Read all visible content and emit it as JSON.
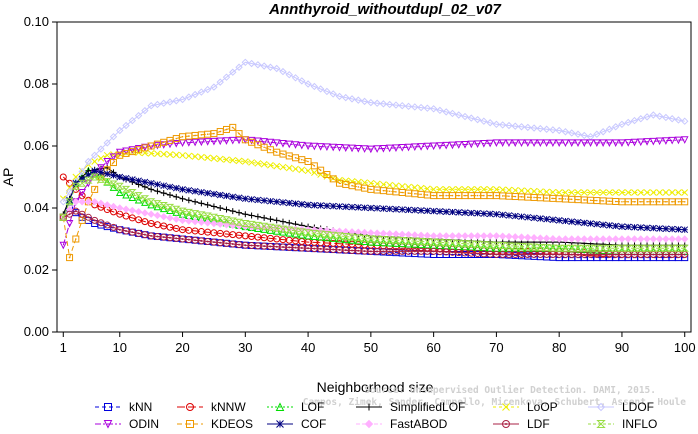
{
  "chart_data": {
    "type": "line",
    "title": "Annthyroid_withoutdupl_02_v07",
    "xlabel": "Neighborhood size",
    "ylabel": "AP",
    "xlim": [
      0,
      101
    ],
    "ylim": [
      0,
      0.1
    ],
    "x_ticks": [
      1,
      10,
      20,
      30,
      40,
      50,
      60,
      70,
      80,
      90,
      100
    ],
    "y_ticks": [
      "0.00",
      "0.02",
      "0.04",
      "0.06",
      "0.08",
      "0.10"
    ],
    "grid": false,
    "legend_position": "bottom",
    "watermark": [
      "Source: Unsupervised Outlier Detection. DAMI, 2015.",
      "Campos, Zimek, Sander, Campello, Micenkova, Schubert, Assent, Houle"
    ],
    "series": [
      {
        "name": "kNN",
        "color": "#0000dd",
        "marker": "square",
        "dash": "4,3",
        "points": [
          [
            1,
            0.037
          ],
          [
            2,
            0.04
          ],
          [
            4,
            0.037
          ],
          [
            6,
            0.035
          ],
          [
            10,
            0.033
          ],
          [
            15,
            0.031
          ],
          [
            20,
            0.03
          ],
          [
            30,
            0.028
          ],
          [
            40,
            0.027
          ],
          [
            50,
            0.026
          ],
          [
            60,
            0.025
          ],
          [
            70,
            0.025
          ],
          [
            80,
            0.024
          ],
          [
            90,
            0.024
          ],
          [
            100,
            0.024
          ]
        ]
      },
      {
        "name": "kNNW",
        "color": "#dd0000",
        "marker": "circle",
        "dash": "8,3",
        "points": [
          [
            1,
            0.05
          ],
          [
            2,
            0.048
          ],
          [
            4,
            0.044
          ],
          [
            6,
            0.041
          ],
          [
            10,
            0.038
          ],
          [
            15,
            0.035
          ],
          [
            20,
            0.033
          ],
          [
            30,
            0.031
          ],
          [
            40,
            0.029
          ],
          [
            50,
            0.028
          ],
          [
            60,
            0.027
          ],
          [
            70,
            0.026
          ],
          [
            80,
            0.026
          ],
          [
            90,
            0.025
          ],
          [
            100,
            0.025
          ]
        ]
      },
      {
        "name": "LOF",
        "color": "#00dd00",
        "marker": "triangle-up",
        "dash": "2,2",
        "points": [
          [
            1,
            0.037
          ],
          [
            3,
            0.048
          ],
          [
            5,
            0.052
          ],
          [
            7,
            0.05
          ],
          [
            10,
            0.045
          ],
          [
            15,
            0.041
          ],
          [
            20,
            0.038
          ],
          [
            30,
            0.034
          ],
          [
            40,
            0.031
          ],
          [
            50,
            0.029
          ],
          [
            60,
            0.028
          ],
          [
            70,
            0.027
          ],
          [
            80,
            0.027
          ],
          [
            90,
            0.026
          ],
          [
            100,
            0.026
          ]
        ]
      },
      {
        "name": "SimplifiedLOF",
        "color": "#000000",
        "marker": "plus",
        "dash": "",
        "points": [
          [
            1,
            0.038
          ],
          [
            3,
            0.048
          ],
          [
            5,
            0.052
          ],
          [
            8,
            0.053
          ],
          [
            10,
            0.05
          ],
          [
            15,
            0.046
          ],
          [
            20,
            0.043
          ],
          [
            30,
            0.038
          ],
          [
            40,
            0.034
          ],
          [
            50,
            0.031
          ],
          [
            60,
            0.03
          ],
          [
            70,
            0.029
          ],
          [
            80,
            0.029
          ],
          [
            90,
            0.028
          ],
          [
            100,
            0.028
          ]
        ]
      },
      {
        "name": "LoOP",
        "color": "#eeee00",
        "marker": "x",
        "dash": "3,3",
        "points": [
          [
            1,
            0.043
          ],
          [
            3,
            0.05
          ],
          [
            5,
            0.054
          ],
          [
            8,
            0.057
          ],
          [
            12,
            0.058
          ],
          [
            20,
            0.057
          ],
          [
            30,
            0.055
          ],
          [
            40,
            0.052
          ],
          [
            45,
            0.049
          ],
          [
            50,
            0.048
          ],
          [
            60,
            0.046
          ],
          [
            70,
            0.046
          ],
          [
            80,
            0.045
          ],
          [
            90,
            0.045
          ],
          [
            100,
            0.045
          ]
        ]
      },
      {
        "name": "LDOF",
        "color": "#c8c8ff",
        "marker": "diamond",
        "dash": "",
        "points": [
          [
            1,
            0.042
          ],
          [
            5,
            0.055
          ],
          [
            10,
            0.065
          ],
          [
            15,
            0.073
          ],
          [
            20,
            0.075
          ],
          [
            25,
            0.079
          ],
          [
            30,
            0.087
          ],
          [
            35,
            0.085
          ],
          [
            40,
            0.08
          ],
          [
            45,
            0.076
          ],
          [
            50,
            0.074
          ],
          [
            60,
            0.072
          ],
          [
            70,
            0.067
          ],
          [
            80,
            0.065
          ],
          [
            85,
            0.063
          ],
          [
            90,
            0.067
          ],
          [
            95,
            0.07
          ],
          [
            100,
            0.068
          ]
        ]
      },
      {
        "name": "ODIN",
        "color": "#aa00dd",
        "marker": "triangle-down",
        "dash": "6,2,2,2",
        "points": [
          [
            1,
            0.028
          ],
          [
            3,
            0.042
          ],
          [
            6,
            0.051
          ],
          [
            8,
            0.055
          ],
          [
            10,
            0.058
          ],
          [
            15,
            0.06
          ],
          [
            20,
            0.061
          ],
          [
            30,
            0.062
          ],
          [
            40,
            0.06
          ],
          [
            50,
            0.059
          ],
          [
            60,
            0.06
          ],
          [
            70,
            0.061
          ],
          [
            80,
            0.061
          ],
          [
            90,
            0.061
          ],
          [
            100,
            0.062
          ]
        ]
      },
      {
        "name": "KDEOS",
        "color": "#ee9900",
        "marker": "square-dot",
        "dash": "5,3",
        "points": [
          [
            1,
            0.037
          ],
          [
            2,
            0.024
          ],
          [
            3,
            0.03
          ],
          [
            5,
            0.042
          ],
          [
            7,
            0.05
          ],
          [
            10,
            0.057
          ],
          [
            15,
            0.06
          ],
          [
            20,
            0.063
          ],
          [
            25,
            0.064
          ],
          [
            28,
            0.066
          ],
          [
            30,
            0.062
          ],
          [
            35,
            0.058
          ],
          [
            40,
            0.055
          ],
          [
            45,
            0.048
          ],
          [
            50,
            0.046
          ],
          [
            60,
            0.044
          ],
          [
            70,
            0.044
          ],
          [
            80,
            0.043
          ],
          [
            90,
            0.042
          ],
          [
            100,
            0.042
          ]
        ]
      },
      {
        "name": "COF",
        "color": "#000080",
        "marker": "star",
        "dash": "",
        "points": [
          [
            1,
            0.037
          ],
          [
            3,
            0.048
          ],
          [
            6,
            0.052
          ],
          [
            10,
            0.05
          ],
          [
            15,
            0.048
          ],
          [
            20,
            0.046
          ],
          [
            30,
            0.043
          ],
          [
            40,
            0.041
          ],
          [
            50,
            0.04
          ],
          [
            60,
            0.039
          ],
          [
            70,
            0.038
          ],
          [
            80,
            0.036
          ],
          [
            90,
            0.034
          ],
          [
            100,
            0.033
          ]
        ]
      },
      {
        "name": "FastABOD",
        "color": "#ffb0ff",
        "marker": "diamond-filled",
        "dash": "4,2",
        "points": [
          [
            1,
            0.037
          ],
          [
            3,
            0.042
          ],
          [
            6,
            0.042
          ],
          [
            10,
            0.04
          ],
          [
            15,
            0.038
          ],
          [
            20,
            0.036
          ],
          [
            30,
            0.034
          ],
          [
            40,
            0.033
          ],
          [
            50,
            0.032
          ],
          [
            60,
            0.031
          ],
          [
            70,
            0.031
          ],
          [
            80,
            0.03
          ],
          [
            90,
            0.03
          ],
          [
            100,
            0.03
          ]
        ]
      },
      {
        "name": "LDF",
        "color": "#aa2244",
        "marker": "circle-dot",
        "dash": "",
        "points": [
          [
            1,
            0.037
          ],
          [
            3,
            0.039
          ],
          [
            6,
            0.036
          ],
          [
            10,
            0.033
          ],
          [
            15,
            0.031
          ],
          [
            20,
            0.03
          ],
          [
            30,
            0.028
          ],
          [
            40,
            0.027
          ],
          [
            50,
            0.026
          ],
          [
            60,
            0.026
          ],
          [
            70,
            0.025
          ],
          [
            80,
            0.025
          ],
          [
            90,
            0.025
          ],
          [
            100,
            0.025
          ]
        ]
      },
      {
        "name": "INFLO",
        "color": "#99dd44",
        "marker": "hourglass",
        "dash": "3,2",
        "points": [
          [
            1,
            0.037
          ],
          [
            3,
            0.047
          ],
          [
            6,
            0.05
          ],
          [
            10,
            0.047
          ],
          [
            15,
            0.042
          ],
          [
            20,
            0.039
          ],
          [
            30,
            0.035
          ],
          [
            40,
            0.032
          ],
          [
            50,
            0.03
          ],
          [
            60,
            0.029
          ],
          [
            70,
            0.028
          ],
          [
            80,
            0.027
          ],
          [
            90,
            0.027
          ],
          [
            100,
            0.027
          ]
        ]
      }
    ],
    "legend_layout": [
      [
        "kNN",
        "kNNW",
        "LOF",
        "SimplifiedLOF",
        "LoOP",
        "LDOF"
      ],
      [
        "ODIN",
        "KDEOS",
        "COF",
        "FastABOD",
        "LDF",
        "INFLO"
      ]
    ]
  }
}
